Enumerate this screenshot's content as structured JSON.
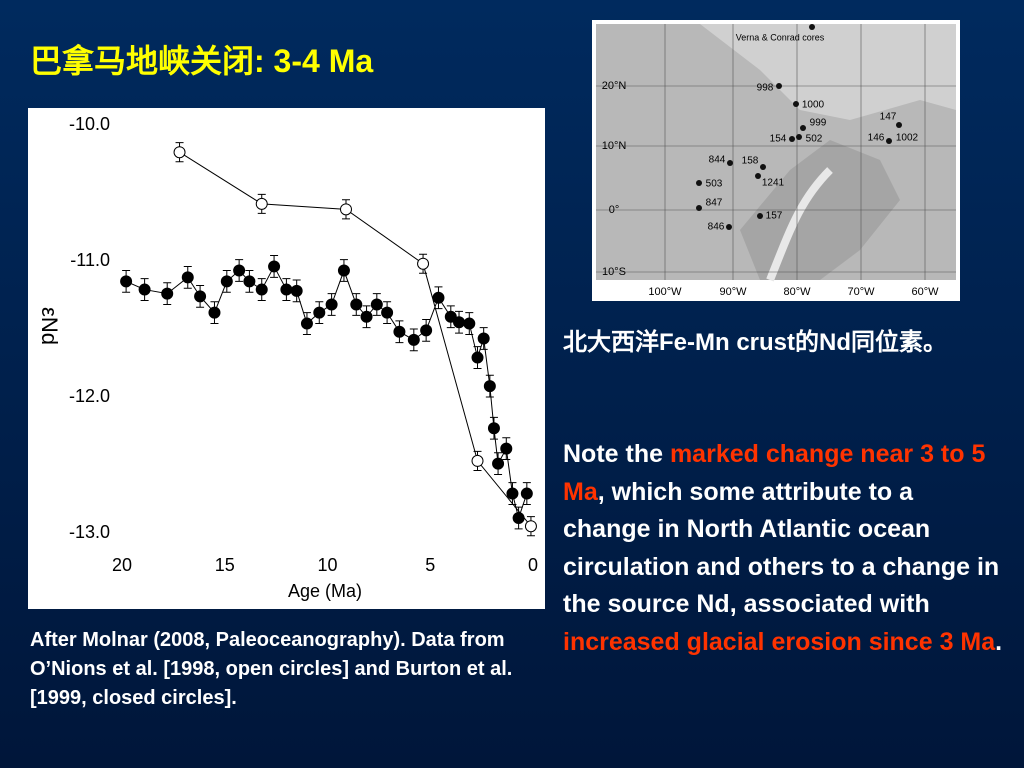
{
  "slide": {
    "title": "巴拿马地峡关闭: 3-4 Ma",
    "caption": "After Molnar (2008, Paleoceanography). Data from O’Nions et al. [1998, open circles] and Burton et al. [1999, closed circles].",
    "heading": "北大西洋Fe-Mn crust的Nd同位素。",
    "note": [
      "Note the ",
      "marked change near 3 to 5 Ma",
      ", which some attribute to a change in North Atlantic ocean circulation and others to a change in the source Nd, associated with ",
      "increased glacial erosion since 3 Ma",
      "."
    ]
  },
  "map": {
    "sites": [
      "Verna & Conrad cores",
      "998",
      "1000",
      "999",
      "147",
      "146",
      "1002",
      "154",
      "502",
      "844",
      "158",
      "503",
      "1241",
      "847",
      "157",
      "846"
    ],
    "lat_labels": [
      "20°N",
      "10°N",
      "0°",
      "10°S"
    ],
    "lon_labels": [
      "100°W",
      "90°W",
      "80°W",
      "70°W",
      "60°W"
    ]
  },
  "chart_data": {
    "type": "line",
    "x_label": "Age (Ma)",
    "y_label": "εNd",
    "xlim": [
      20,
      0
    ],
    "xticks": [
      20,
      15,
      10,
      5,
      0
    ],
    "ylim": [
      -13,
      -10
    ],
    "yticks": [
      {
        "value": -10,
        "label": "-10.0"
      },
      {
        "value": -11,
        "label": "-11.0"
      },
      {
        "value": -12,
        "label": "-12.0"
      },
      {
        "value": -13,
        "label": "-13.0"
      }
    ],
    "grid": false,
    "series": [
      {
        "name": "O’Nions et al. [1998]",
        "color": "#000000",
        "fill": "#ffffff",
        "error": 0.07,
        "x": [
          17.2,
          13.2,
          9.1,
          5.35,
          2.7,
          0.1
        ],
        "values": [
          -10.2,
          -10.58,
          -10.62,
          -11.02,
          -12.47,
          -12.95
        ]
      },
      {
        "name": "Burton et al. [1999]",
        "color": "#000000",
        "fill": "#000000",
        "error": 0.08,
        "x": [
          19.8,
          18.9,
          17.8,
          16.8,
          16.2,
          15.5,
          14.9,
          14.3,
          13.8,
          13.2,
          12.6,
          12.0,
          11.5,
          11.0,
          10.4,
          9.8,
          9.2,
          8.6,
          8.1,
          7.6,
          7.1,
          6.5,
          5.8,
          5.2,
          4.6,
          4.0,
          3.6,
          3.1,
          2.7,
          2.4,
          2.1,
          1.9,
          1.7,
          1.3,
          1.0,
          0.7,
          0.3
        ],
        "values": [
          -11.15,
          -11.21,
          -11.24,
          -11.12,
          -11.26,
          -11.38,
          -11.15,
          -11.07,
          -11.15,
          -11.21,
          -11.04,
          -11.21,
          -11.22,
          -11.46,
          -11.38,
          -11.32,
          -11.07,
          -11.32,
          -11.41,
          -11.32,
          -11.38,
          -11.52,
          -11.58,
          -11.51,
          -11.27,
          -11.41,
          -11.45,
          -11.46,
          -11.71,
          -11.57,
          -11.92,
          -12.23,
          -12.49,
          -12.38,
          -12.71,
          -12.89,
          -12.71
        ]
      }
    ]
  }
}
